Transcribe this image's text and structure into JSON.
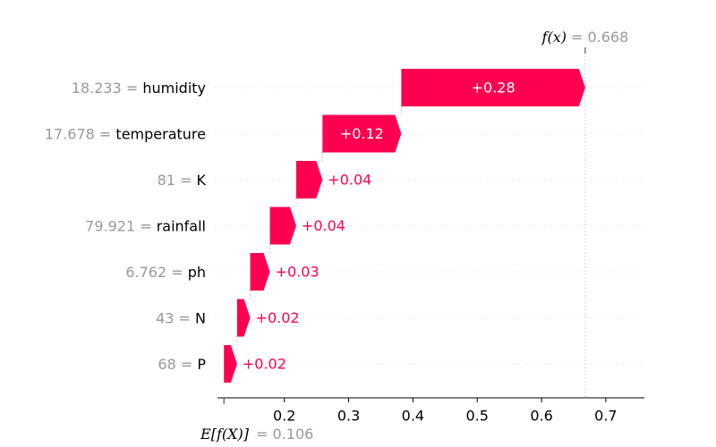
{
  "chart_data": {
    "type": "waterfall",
    "base_value": 0.106,
    "base_label": "E[f(X)]",
    "base_value_text": "= 0.106",
    "output_value": 0.668,
    "output_label": "f(x)",
    "output_value_text": "= 0.668",
    "features": [
      {
        "value": "18.233",
        "name": "humidity",
        "contribution": 0.28,
        "label": "+0.28"
      },
      {
        "value": "17.678",
        "name": "temperature",
        "contribution": 0.12,
        "label": "+0.12"
      },
      {
        "value": "81",
        "name": "K",
        "contribution": 0.04,
        "label": "+0.04"
      },
      {
        "value": "79.921",
        "name": "rainfall",
        "contribution": 0.04,
        "label": "+0.04"
      },
      {
        "value": "6.762",
        "name": "ph",
        "contribution": 0.03,
        "label": "+0.03"
      },
      {
        "value": "43",
        "name": "N",
        "contribution": 0.02,
        "label": "+0.02"
      },
      {
        "value": "68",
        "name": "P",
        "contribution": 0.02,
        "label": "+0.02"
      }
    ],
    "xticks": [
      0.2,
      0.3,
      0.4,
      0.5,
      0.6,
      0.7
    ],
    "xtick_labels": [
      "0.2",
      "0.3",
      "0.4",
      "0.5",
      "0.6",
      "0.7"
    ],
    "xlim": [
      0.096,
      0.76
    ],
    "positive_color": "#ff0051",
    "grid": false
  }
}
